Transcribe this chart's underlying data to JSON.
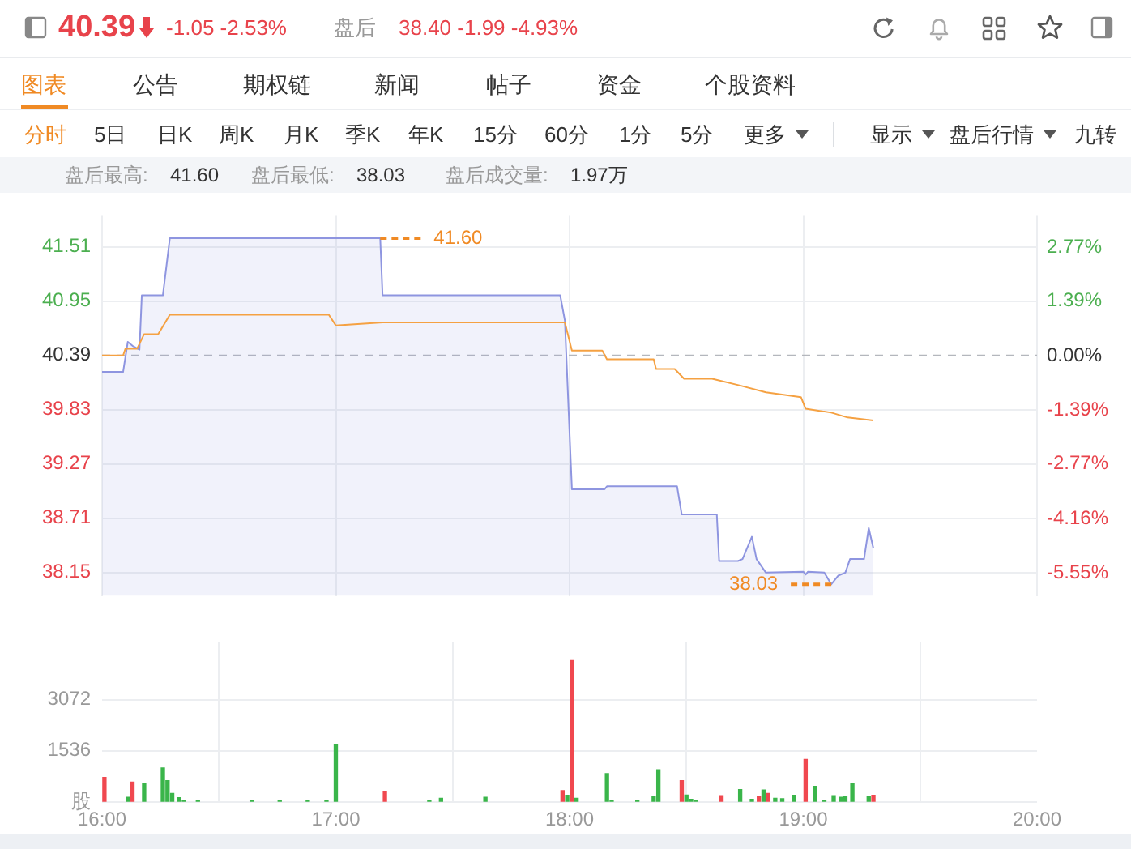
{
  "chart_data": [
    {
      "type": "other",
      "title": "40.39",
      "subtitle": "-1.05 -2.53%",
      "annotations": [
        "盘后",
        "38.40 -1.99 -4.93%",
        "图表",
        "公告",
        "期权链",
        "新闻",
        "帖子",
        "资金",
        "个股资料",
        "分时",
        "5日",
        "日K",
        "周K",
        "月K",
        "季K",
        "年K",
        "15分",
        "60分",
        "1分",
        "5分",
        "更多",
        "显示",
        "盘后行情",
        "九转",
        "盘后最高:",
        "41.60",
        "盘后最低:",
        "38.03",
        "盘后成交量:",
        "1.97万"
      ]
    },
    {
      "type": "line",
      "xlim": [
        16,
        20
      ],
      "xticks": [
        {
          "value": 16,
          "label": null
        },
        {
          "value": 17,
          "label": null
        },
        {
          "value": 18,
          "label": null
        },
        {
          "value": 19,
          "label": null
        },
        {
          "value": 20,
          "label": null
        }
      ],
      "ylim": [
        37.91,
        41.83
      ],
      "yticks": [
        38.15,
        38.71,
        39.27,
        39.83,
        40.39,
        40.95,
        41.51
      ],
      "y2lim": [
        -6.14,
        3.57
      ],
      "y2ticks": [
        {
          "value": -5.55,
          "label": "-5.55%"
        },
        {
          "value": -4.16,
          "label": "-4.16%"
        },
        {
          "value": -2.77,
          "label": "-2.77%"
        },
        {
          "value": -1.39,
          "label": "-1.39%"
        },
        {
          "value": 0,
          "label": "0.00%"
        },
        {
          "value": 1.39,
          "label": "1.39%"
        },
        {
          "value": 2.77,
          "label": "2.77%"
        }
      ],
      "tick_labels": "y",
      "grid": true,
      "ref_lines": [
        {
          "axis": "y",
          "value": 40.39,
          "color": "#b4b7bd",
          "line_style": "dashed"
        }
      ],
      "annotations": [
        {
          "text": "41.60",
          "x": 17.19,
          "y": 41.6
        },
        {
          "text": "38.03",
          "x": 19.12,
          "y": 38.03
        }
      ],
      "series": [
        {
          "type": "area",
          "color": "#8e95e0",
          "x": [
            16.0,
            16.09,
            16.11,
            16.13,
            16.16,
            16.17,
            16.26,
            16.29,
            17.19,
            17.2,
            17.96,
            17.98,
            18.01,
            18.15,
            18.16,
            18.46,
            18.48,
            18.63,
            18.64,
            18.72,
            18.74,
            18.78,
            18.8,
            18.84,
            19.0,
            19.01,
            19.02,
            19.09,
            19.12,
            19.15,
            19.18,
            19.2,
            19.26,
            19.28,
            19.3
          ],
          "values": [
            40.22,
            40.22,
            40.53,
            40.49,
            40.45,
            41.01,
            41.01,
            41.6,
            41.6,
            41.01,
            41.01,
            40.75,
            39.01,
            39.01,
            39.04,
            39.04,
            38.75,
            38.75,
            38.27,
            38.27,
            38.29,
            38.52,
            38.29,
            38.15,
            38.16,
            38.13,
            38.16,
            38.15,
            38.03,
            38.12,
            38.15,
            38.29,
            38.29,
            38.61,
            38.4
          ]
        },
        {
          "type": "line",
          "color": "#f5a142",
          "x": [
            16.0,
            16.09,
            16.1,
            16.15,
            16.18,
            16.24,
            16.29,
            16.97,
            17.0,
            17.2,
            17.98,
            18.01,
            18.14,
            18.16,
            18.36,
            18.37,
            18.45,
            18.49,
            18.61,
            18.73,
            18.84,
            18.99,
            19.01,
            19.12,
            19.19,
            19.3
          ],
          "values": [
            40.39,
            40.39,
            40.46,
            40.46,
            40.61,
            40.61,
            40.81,
            40.81,
            40.7,
            40.73,
            40.73,
            40.44,
            40.44,
            40.35,
            40.35,
            40.25,
            40.25,
            40.15,
            40.15,
            40.08,
            40.01,
            39.96,
            39.84,
            39.8,
            39.75,
            39.72
          ]
        }
      ]
    },
    {
      "type": "bar",
      "xlim": [
        16,
        20
      ],
      "xticks": [
        {
          "value": 16,
          "label": "16:00"
        },
        {
          "value": 17,
          "label": "17:00"
        },
        {
          "value": 18,
          "label": "18:00"
        },
        {
          "value": 19,
          "label": "19:00"
        },
        {
          "value": 20,
          "label": "20:00"
        }
      ],
      "ylim": [
        0,
        4800
      ],
      "yticks": [
        {
          "value": 0,
          "label": "股"
        },
        1536,
        3072
      ],
      "grid": true,
      "x": [
        16.01,
        16.11,
        16.13,
        16.18,
        16.26,
        16.28,
        16.3,
        16.33,
        16.35,
        16.41,
        16.64,
        16.76,
        16.88,
        16.96,
        17.0,
        17.21,
        17.4,
        17.45,
        17.64,
        17.97,
        17.99,
        18.01,
        18.03,
        18.16,
        18.18,
        18.29,
        18.36,
        18.38,
        18.48,
        18.5,
        18.52,
        18.54,
        18.65,
        18.73,
        18.78,
        18.81,
        18.83,
        18.85,
        18.88,
        18.91,
        18.96,
        19.01,
        19.05,
        19.09,
        19.13,
        19.16,
        19.18,
        19.21,
        19.28,
        19.3
      ],
      "values": [
        740,
        140,
        600,
        570,
        1020,
        640,
        260,
        130,
        40,
        30,
        30,
        30,
        30,
        30,
        1710,
        310,
        30,
        110,
        140,
        340,
        200,
        4240,
        110,
        850,
        30,
        30,
        170,
        970,
        640,
        210,
        80,
        30,
        190,
        370,
        80,
        160,
        360,
        260,
        110,
        100,
        200,
        1280,
        470,
        40,
        190,
        140,
        160,
        540,
        160,
        200
      ],
      "colors": [
        "#f0484f",
        "#3ab54a",
        "#f0484f",
        "#3ab54a",
        "#3ab54a",
        "#3ab54a",
        "#3ab54a",
        "#3ab54a",
        "#3ab54a",
        "#3ab54a",
        "#3ab54a",
        "#3ab54a",
        "#3ab54a",
        "#3ab54a",
        "#3ab54a",
        "#f0484f",
        "#3ab54a",
        "#3ab54a",
        "#3ab54a",
        "#f0484f",
        "#3ab54a",
        "#f0484f",
        "#3ab54a",
        "#3ab54a",
        "#3ab54a",
        "#3ab54a",
        "#3ab54a",
        "#3ab54a",
        "#f0484f",
        "#3ab54a",
        "#3ab54a",
        "#3ab54a",
        "#f0484f",
        "#3ab54a",
        "#3ab54a",
        "#f0484f",
        "#3ab54a",
        "#f0484f",
        "#3ab54a",
        "#3ab54a",
        "#3ab54a",
        "#f0484f",
        "#3ab54a",
        "#3ab54a",
        "#3ab54a",
        "#3ab54a",
        "#3ab54a",
        "#3ab54a",
        "#3ab54a",
        "#f0484f"
      ]
    }
  ]
}
